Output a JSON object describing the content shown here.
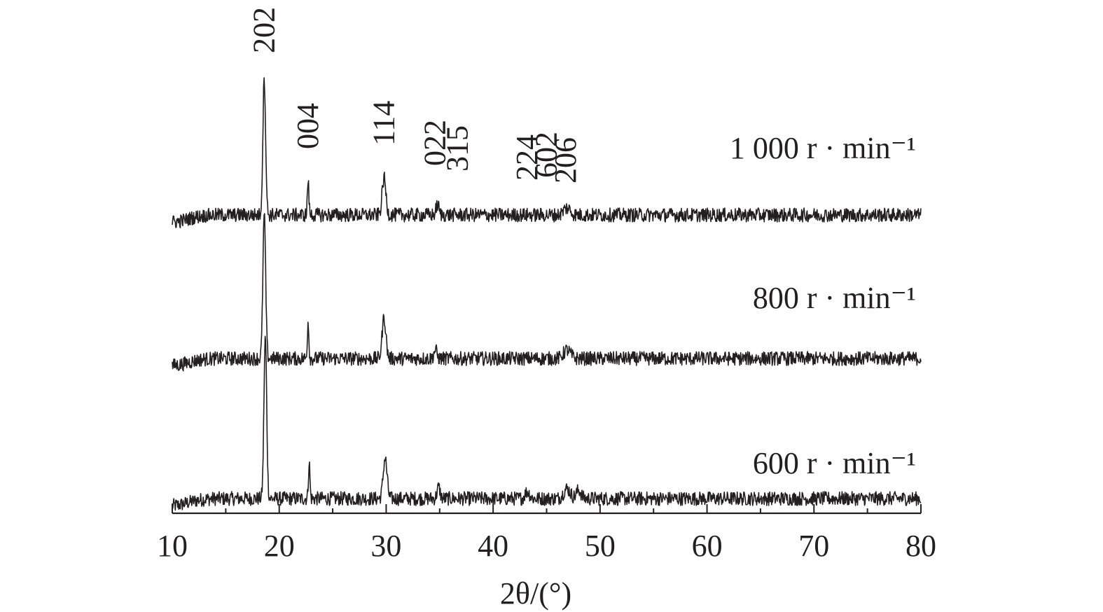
{
  "chart_data": {
    "type": "line",
    "title": "",
    "xlabel": "2θ/(°)",
    "ylabel": "",
    "xlim": [
      10,
      80
    ],
    "xticks": [
      10,
      20,
      30,
      40,
      50,
      60,
      70,
      80
    ],
    "xtick_labels": [
      "10",
      "20",
      "30",
      "40",
      "50",
      "60",
      "70",
      "80"
    ],
    "minor_tick_step": 5,
    "y_axis_visible": false,
    "series": [
      {
        "name": "600 r · min⁻¹",
        "color": "#231f20",
        "baseline": 0,
        "peaks": [
          {
            "x": 18.7,
            "height": 230,
            "width": 0.18
          },
          {
            "x": 22.8,
            "height": 52,
            "width": 0.1
          },
          {
            "x": 29.9,
            "height": 58,
            "width": 0.25
          },
          {
            "x": 34.9,
            "height": 16,
            "width": 0.2
          },
          {
            "x": 43.2,
            "height": 10,
            "width": 0.3
          },
          {
            "x": 46.9,
            "height": 14,
            "width": 0.45
          },
          {
            "x": 48.0,
            "height": 12,
            "width": 0.3
          }
        ]
      },
      {
        "name": "800 r · min⁻¹",
        "color": "#231f20",
        "baseline": 200,
        "peaks": [
          {
            "x": 18.6,
            "height": 205,
            "width": 0.18
          },
          {
            "x": 22.7,
            "height": 52,
            "width": 0.1
          },
          {
            "x": 29.8,
            "height": 58,
            "width": 0.25
          },
          {
            "x": 34.6,
            "height": 12,
            "width": 0.2
          },
          {
            "x": 46.9,
            "height": 12,
            "width": 0.45
          }
        ]
      },
      {
        "name": "1 000 r · min⁻¹",
        "color": "#231f20",
        "baseline": 405,
        "peaks": [
          {
            "x": 18.6,
            "height": 195,
            "width": 0.18
          },
          {
            "x": 22.7,
            "height": 48,
            "width": 0.1
          },
          {
            "x": 29.8,
            "height": 52,
            "width": 0.25
          },
          {
            "x": 34.8,
            "height": 14,
            "width": 0.2
          },
          {
            "x": 46.9,
            "height": 10,
            "width": 0.45
          }
        ]
      }
    ],
    "annotations": [
      {
        "text": "202",
        "x": 18.6
      },
      {
        "text": "004",
        "x": 22.7
      },
      {
        "text": "114",
        "x": 29.8
      },
      {
        "text": "022",
        "x": 34.6
      },
      {
        "text": "315",
        "x": 36.7
      },
      {
        "text": "224",
        "x": 43.2
      },
      {
        "text": "602",
        "x": 45.0
      },
      {
        "text": "206",
        "x": 46.8
      }
    ],
    "grid": false,
    "legend": "inline labels to the right of each curve"
  }
}
